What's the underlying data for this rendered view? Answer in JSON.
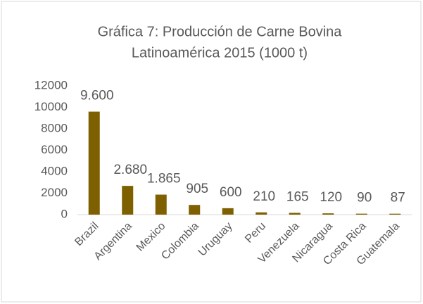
{
  "chart_data": {
    "type": "bar",
    "title": [
      "Gráfica 7: Producción de Carne Bovina",
      "Latinoamérica 2015 (1000 t)"
    ],
    "categories": [
      "Brazil",
      "Argentina",
      "Mexico",
      "Colombia",
      "Uruguay",
      "Peru",
      "Venezuela",
      "Nicaragua",
      "Costa Rica",
      "Guatemala"
    ],
    "values": [
      9600,
      2680,
      1865,
      905,
      600,
      210,
      165,
      120,
      90,
      87
    ],
    "value_labels": [
      "9.600",
      "2.680",
      "1.865",
      "905",
      "600",
      "210",
      "165",
      "120",
      "90",
      "87"
    ],
    "color": "#7f6000",
    "ylim": [
      0,
      12000
    ],
    "yticks": [
      0,
      2000,
      4000,
      6000,
      8000,
      10000,
      12000
    ],
    "grid": false
  }
}
